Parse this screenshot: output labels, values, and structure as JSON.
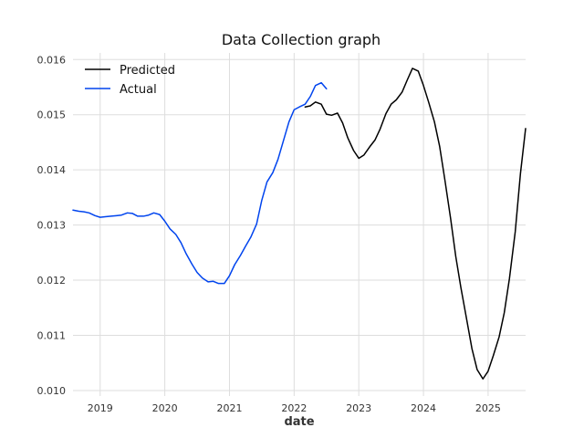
{
  "chart_data": {
    "type": "line",
    "title": "Data Collection graph",
    "xlabel": "date",
    "ylabel": "",
    "xlim": [
      2018.58,
      2025.58
    ],
    "ylim": [
      0.0099,
      0.01612
    ],
    "x_ticks": [
      2019,
      2020,
      2021,
      2022,
      2023,
      2024,
      2025
    ],
    "x_tick_labels": [
      "2019",
      "2020",
      "2021",
      "2022",
      "2023",
      "2024",
      "2025"
    ],
    "y_ticks": [
      0.01,
      0.011,
      0.012,
      0.013,
      0.014,
      0.015,
      0.016
    ],
    "y_tick_labels": [
      "0.010",
      "0.011",
      "0.012",
      "0.013",
      "0.014",
      "0.015",
      "0.016"
    ],
    "grid": true,
    "legend_position": "top-left",
    "series": [
      {
        "name": "Actual",
        "color": "#0044ee",
        "points": [
          [
            2018.58,
            0.01327
          ],
          [
            2018.67,
            0.01325
          ],
          [
            2018.75,
            0.01324
          ],
          [
            2018.83,
            0.01322
          ],
          [
            2018.92,
            0.01317
          ],
          [
            2019.0,
            0.01314
          ],
          [
            2019.08,
            0.01315
          ],
          [
            2019.17,
            0.01316
          ],
          [
            2019.25,
            0.01317
          ],
          [
            2019.33,
            0.01318
          ],
          [
            2019.42,
            0.01322
          ],
          [
            2019.5,
            0.01321
          ],
          [
            2019.58,
            0.01316
          ],
          [
            2019.67,
            0.01316
          ],
          [
            2019.75,
            0.01318
          ],
          [
            2019.83,
            0.01322
          ],
          [
            2019.92,
            0.01319
          ],
          [
            2020.0,
            0.01307
          ],
          [
            2020.08,
            0.01293
          ],
          [
            2020.17,
            0.01283
          ],
          [
            2020.25,
            0.01268
          ],
          [
            2020.33,
            0.01248
          ],
          [
            2020.42,
            0.01229
          ],
          [
            2020.5,
            0.01214
          ],
          [
            2020.58,
            0.01204
          ],
          [
            2020.67,
            0.01197
          ],
          [
            2020.75,
            0.01198
          ],
          [
            2020.83,
            0.01194
          ],
          [
            2020.92,
            0.01194
          ],
          [
            2021.0,
            0.01208
          ],
          [
            2021.08,
            0.01228
          ],
          [
            2021.17,
            0.01245
          ],
          [
            2021.25,
            0.01262
          ],
          [
            2021.33,
            0.01278
          ],
          [
            2021.42,
            0.01302
          ],
          [
            2021.5,
            0.01345
          ],
          [
            2021.58,
            0.01378
          ],
          [
            2021.67,
            0.01395
          ],
          [
            2021.75,
            0.01419
          ],
          [
            2021.83,
            0.01451
          ],
          [
            2021.92,
            0.01487
          ],
          [
            2022.0,
            0.01509
          ],
          [
            2022.08,
            0.01514
          ],
          [
            2022.17,
            0.01519
          ],
          [
            2022.25,
            0.01533
          ],
          [
            2022.33,
            0.01553
          ],
          [
            2022.42,
            0.01558
          ],
          [
            2022.5,
            0.01547
          ]
        ]
      },
      {
        "name": "Predicted",
        "color": "#000000",
        "points": [
          [
            2022.17,
            0.01514
          ],
          [
            2022.25,
            0.01516
          ],
          [
            2022.33,
            0.01523
          ],
          [
            2022.42,
            0.01519
          ],
          [
            2022.5,
            0.01501
          ],
          [
            2022.58,
            0.01499
          ],
          [
            2022.67,
            0.01503
          ],
          [
            2022.75,
            0.01485
          ],
          [
            2022.83,
            0.01458
          ],
          [
            2022.92,
            0.01435
          ],
          [
            2023.0,
            0.01421
          ],
          [
            2023.08,
            0.01427
          ],
          [
            2023.17,
            0.01442
          ],
          [
            2023.25,
            0.01454
          ],
          [
            2023.33,
            0.01474
          ],
          [
            2023.42,
            0.01502
          ],
          [
            2023.5,
            0.01519
          ],
          [
            2023.58,
            0.01527
          ],
          [
            2023.67,
            0.01541
          ],
          [
            2023.75,
            0.01563
          ],
          [
            2023.83,
            0.01584
          ],
          [
            2023.92,
            0.01579
          ],
          [
            2024.0,
            0.01553
          ],
          [
            2024.08,
            0.01523
          ],
          [
            2024.17,
            0.01487
          ],
          [
            2024.25,
            0.01443
          ],
          [
            2024.33,
            0.01383
          ],
          [
            2024.42,
            0.01312
          ],
          [
            2024.5,
            0.01243
          ],
          [
            2024.58,
            0.01186
          ],
          [
            2024.67,
            0.01128
          ],
          [
            2024.75,
            0.01076
          ],
          [
            2024.83,
            0.01038
          ],
          [
            2024.92,
            0.01021
          ],
          [
            2025.0,
            0.01035
          ],
          [
            2025.08,
            0.01063
          ],
          [
            2025.17,
            0.01097
          ],
          [
            2025.25,
            0.01141
          ],
          [
            2025.33,
            0.01203
          ],
          [
            2025.42,
            0.01288
          ],
          [
            2025.5,
            0.01393
          ],
          [
            2025.58,
            0.01475
          ]
        ]
      }
    ],
    "legend_order": [
      "Predicted",
      "Actual"
    ]
  }
}
